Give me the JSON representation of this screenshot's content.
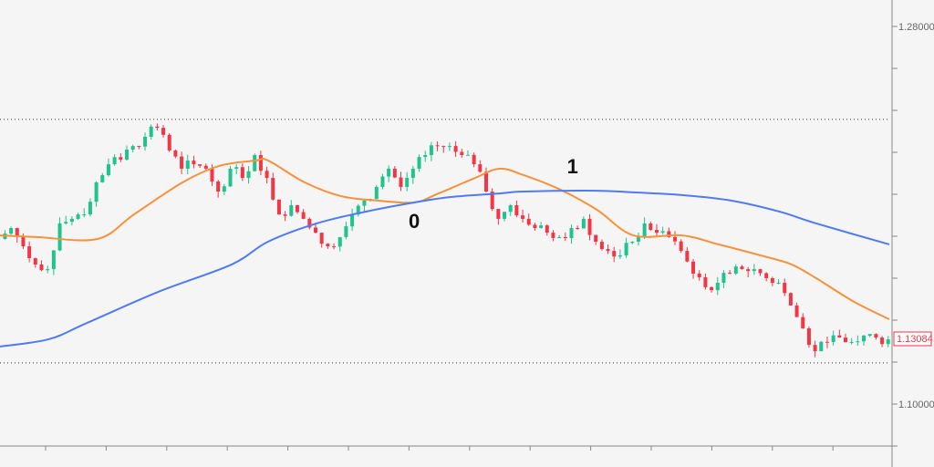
{
  "chart_data": {
    "type": "candlestick",
    "y_axis": {
      "labels": [
        "1.28000",
        "1.10000"
      ],
      "label_values": [
        1.28,
        1.1
      ],
      "tick_step": 0.02,
      "range": [
        1.08,
        1.29
      ],
      "position": "right"
    },
    "x_axis": {
      "labels": []
    },
    "grid": false,
    "closes": [
      1.1787,
      1.1839,
      1.1752,
      1.1665,
      1.1643,
      1.1861,
      1.1883,
      1.1904,
      1.2057,
      1.2143,
      1.2165,
      1.223,
      1.2274,
      1.2317,
      1.2209,
      1.2122,
      1.2143,
      1.2122,
      1.2013,
      1.2122,
      1.2078,
      1.2187,
      1.2078,
      1.1904,
      1.1948,
      1.1883,
      1.1817,
      1.1752,
      1.1796,
      1.1904,
      1.197,
      1.2035,
      1.2122,
      1.2035,
      1.2122,
      1.2187,
      1.223,
      1.223,
      1.2187,
      1.2143,
      1.2013,
      1.1883,
      1.1948,
      1.1883,
      1.1839,
      1.1817,
      1.1796,
      1.1839,
      1.1883,
      1.1774,
      1.173,
      1.1709,
      1.1774,
      1.1861,
      1.1817,
      1.1796,
      1.173,
      1.1622,
      1.1557,
      1.1578,
      1.1622,
      1.1643,
      1.1643,
      1.16,
      1.1578,
      1.147,
      1.1361,
      1.1252,
      1.1296,
      1.1317,
      1.1296,
      1.1326,
      1.1317,
      1.13084
    ],
    "moving_averages": [
      {
        "color": "#f7913a",
        "points": [
          [
            0,
            1.1804
          ],
          [
            3,
            1.1796
          ],
          [
            8,
            1.1787
          ],
          [
            11,
            1.1904
          ],
          [
            15,
            1.2057
          ],
          [
            18,
            1.2135
          ],
          [
            21,
            1.2161
          ],
          [
            22,
            1.2161
          ],
          [
            25,
            1.2057
          ],
          [
            28,
            1.1991
          ],
          [
            31,
            1.197
          ],
          [
            34,
            1.1961
          ],
          [
            36,
            1.2004
          ],
          [
            39,
            1.2078
          ],
          [
            41,
            1.2122
          ],
          [
            43,
            1.2091
          ],
          [
            46,
            1.2022
          ],
          [
            49,
            1.1926
          ],
          [
            52,
            1.1804
          ],
          [
            56,
            1.1804
          ],
          [
            59,
            1.1761
          ],
          [
            63,
            1.17
          ],
          [
            65,
            1.1665
          ],
          [
            67,
            1.16
          ],
          [
            70,
            1.1491
          ],
          [
            73,
            1.1404
          ]
        ]
      },
      {
        "color": "#4f7bf2",
        "points": [
          [
            0,
            1.1274
          ],
          [
            4,
            1.1309
          ],
          [
            7,
            1.1383
          ],
          [
            13,
            1.1535
          ],
          [
            19,
            1.1665
          ],
          [
            22,
            1.1774
          ],
          [
            26,
            1.1861
          ],
          [
            30,
            1.1917
          ],
          [
            34,
            1.1961
          ],
          [
            37,
            1.1987
          ],
          [
            41,
            1.2004
          ],
          [
            43,
            1.2013
          ],
          [
            49,
            1.2017
          ],
          [
            52,
            1.2009
          ],
          [
            56,
            1.1996
          ],
          [
            60,
            1.197
          ],
          [
            64,
            1.1917
          ],
          [
            67,
            1.1861
          ],
          [
            73,
            1.1761
          ]
        ]
      }
    ],
    "horizontal_levels": [
      1.2357,
      1.1196
    ],
    "annotations": [
      {
        "text": "0",
        "x": 34,
        "y": 1.1875
      },
      {
        "text": "1",
        "x": 47,
        "y": 1.2135
      }
    ],
    "last_price": "1.13084",
    "up_color": "#1fc38d",
    "down_color": "#f23645"
  }
}
